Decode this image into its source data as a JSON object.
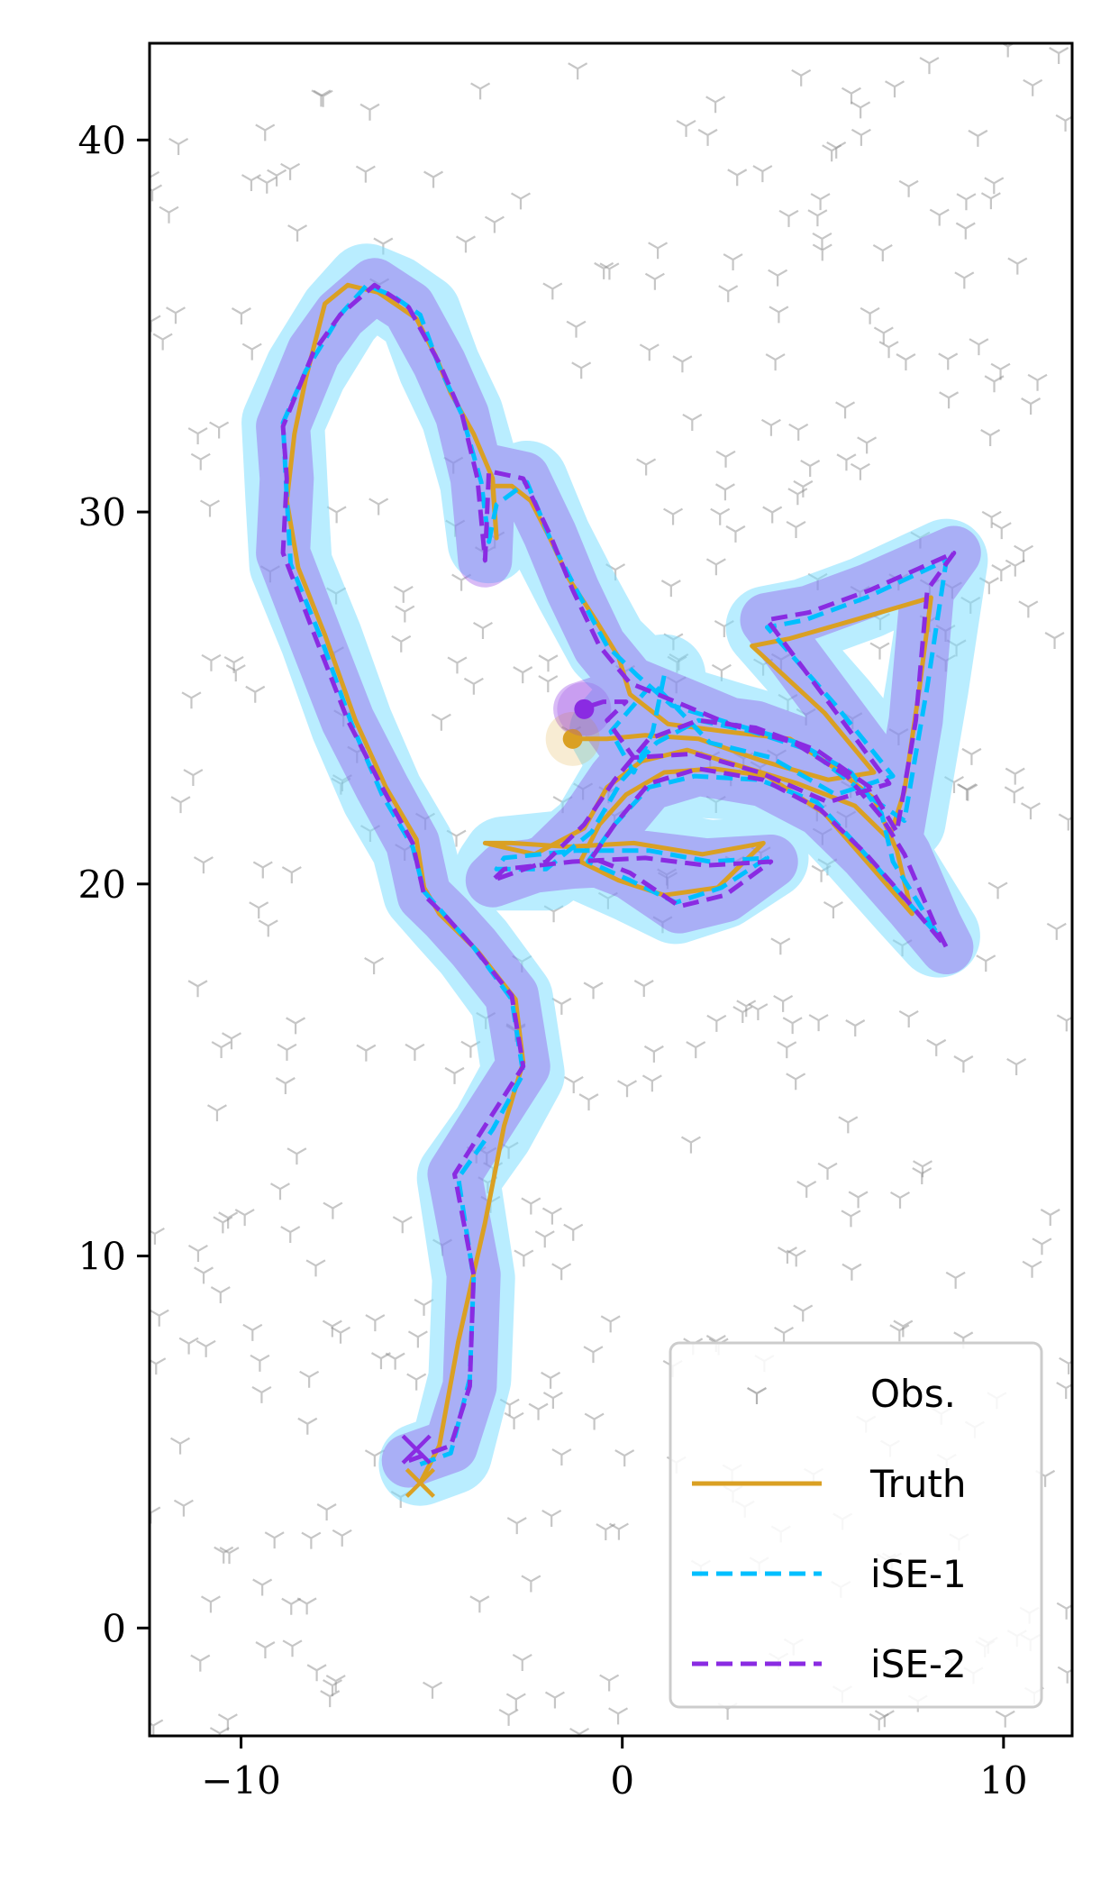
{
  "chart_data": {
    "type": "line",
    "xlim": [
      -12.4,
      11.8
    ],
    "ylim": [
      -2.9,
      42.6
    ],
    "xticks": [
      {
        "value": -10,
        "label": "−10"
      },
      {
        "value": 0,
        "label": "0"
      },
      {
        "value": 10,
        "label": "10"
      }
    ],
    "yticks": [
      {
        "value": 0,
        "label": "0"
      },
      {
        "value": 10,
        "label": "10"
      },
      {
        "value": 20,
        "label": "20"
      },
      {
        "value": 30,
        "label": "30"
      },
      {
        "value": 40,
        "label": "40"
      }
    ],
    "grid": false,
    "legend": {
      "position": "lower-right",
      "entries": [
        {
          "label": "Obs.",
          "kind": "marker",
          "color": "#808080"
        },
        {
          "label": "Truth",
          "kind": "solid",
          "color": "#DAA023"
        },
        {
          "label": "iSE-1",
          "kind": "dashed",
          "color": "#00BFFF"
        },
        {
          "label": "iSE-2",
          "kind": "dashed",
          "color": "#8A2BE2"
        }
      ]
    },
    "series": [
      {
        "name": "Truth",
        "color": "#DAA023",
        "style": "solid",
        "points": [
          [
            -5.3,
            3.9
          ],
          [
            -4.8,
            4.9
          ],
          [
            -4.3,
            7.7
          ],
          [
            -3.6,
            10.9
          ],
          [
            -3.1,
            13.5
          ],
          [
            -2.6,
            15.2
          ],
          [
            -2.8,
            16.9
          ],
          [
            -3.8,
            18.2
          ],
          [
            -4.8,
            19.2
          ],
          [
            -5.2,
            19.9
          ],
          [
            -5.4,
            21.2
          ],
          [
            -6.2,
            22.6
          ],
          [
            -7.0,
            24.4
          ],
          [
            -7.8,
            26.7
          ],
          [
            -8.5,
            28.5
          ],
          [
            -8.8,
            30.3
          ],
          [
            -8.6,
            32.1
          ],
          [
            -8.3,
            33.6
          ],
          [
            -7.8,
            35.6
          ],
          [
            -7.2,
            36.1
          ],
          [
            -6.4,
            35.9
          ],
          [
            -5.4,
            35.2
          ],
          [
            -4.9,
            34.2
          ],
          [
            -4.5,
            33.2
          ],
          [
            -3.9,
            32.1
          ],
          [
            -3.4,
            30.9
          ],
          [
            -3.3,
            29.3
          ],
          [
            -3.4,
            30.7
          ],
          [
            -2.9,
            30.7
          ],
          [
            -2.4,
            30.3
          ],
          [
            -1.9,
            29.3
          ],
          [
            -1.4,
            28.2
          ],
          [
            -0.7,
            27.1
          ],
          [
            -0.1,
            26.1
          ],
          [
            0.2,
            25.1
          ],
          [
            1.2,
            24.3
          ],
          [
            2.7,
            24.1
          ],
          [
            4.4,
            23.9
          ],
          [
            5.6,
            23.1
          ],
          [
            6.6,
            22.3
          ],
          [
            7.2,
            20.9
          ],
          [
            7.6,
            19.2
          ],
          [
            6.5,
            20.5
          ],
          [
            5.3,
            21.9
          ],
          [
            3.8,
            22.9
          ],
          [
            2.4,
            23.1
          ],
          [
            1.1,
            23.0
          ],
          [
            0.1,
            22.4
          ],
          [
            -0.6,
            21.6
          ],
          [
            -1.1,
            20.6
          ],
          [
            -0.1,
            20.1
          ],
          [
            1.1,
            19.7
          ],
          [
            2.5,
            19.9
          ],
          [
            3.7,
            21.1
          ],
          [
            2.1,
            20.8
          ],
          [
            0.3,
            21.1
          ],
          [
            -1.4,
            21.0
          ],
          [
            -2.9,
            21.1
          ],
          [
            -3.6,
            21.1
          ],
          [
            -2.3,
            20.8
          ],
          [
            -1.0,
            21.5
          ],
          [
            -0.4,
            22.6
          ],
          [
            0.5,
            23.3
          ],
          [
            1.7,
            23.6
          ],
          [
            3.0,
            23.2
          ],
          [
            4.6,
            22.7
          ],
          [
            6.1,
            22.1
          ],
          [
            7.0,
            21.2
          ],
          [
            7.4,
            22.5
          ],
          [
            7.8,
            25.3
          ],
          [
            8.1,
            27.7
          ],
          [
            6.1,
            27.1
          ],
          [
            4.4,
            26.6
          ],
          [
            3.4,
            26.4
          ],
          [
            5.3,
            24.6
          ],
          [
            6.6,
            23.0
          ],
          [
            5.4,
            22.8
          ],
          [
            3.7,
            23.3
          ],
          [
            2.0,
            23.9
          ],
          [
            0.6,
            24.0
          ],
          [
            -0.4,
            23.9
          ],
          [
            -1.2,
            23.9
          ]
        ]
      },
      {
        "name": "iSE-1",
        "color": "#00BFFF",
        "style": "dashed",
        "points": [
          [
            -5.3,
            4.4
          ],
          [
            -4.5,
            4.7
          ],
          [
            -4.0,
            6.7
          ],
          [
            -3.9,
            9.4
          ],
          [
            -4.3,
            12.1
          ],
          [
            -3.4,
            13.4
          ],
          [
            -2.6,
            14.9
          ],
          [
            -2.9,
            16.9
          ],
          [
            -3.9,
            18.3
          ],
          [
            -4.6,
            19.1
          ],
          [
            -5.2,
            19.8
          ],
          [
            -5.5,
            21.0
          ],
          [
            -6.3,
            22.4
          ],
          [
            -7.1,
            24.3
          ],
          [
            -7.9,
            26.6
          ],
          [
            -8.7,
            28.6
          ],
          [
            -8.8,
            30.4
          ],
          [
            -8.9,
            32.4
          ],
          [
            -8.3,
            33.8
          ],
          [
            -7.4,
            35.3
          ],
          [
            -6.7,
            36.1
          ],
          [
            -6.0,
            35.8
          ],
          [
            -5.3,
            35.3
          ],
          [
            -4.8,
            33.9
          ],
          [
            -4.2,
            32.6
          ],
          [
            -3.7,
            30.8
          ],
          [
            -3.5,
            29.2
          ],
          [
            -3.3,
            30.2
          ],
          [
            -2.5,
            30.8
          ],
          [
            -1.9,
            29.3
          ],
          [
            -1.2,
            27.9
          ],
          [
            -0.4,
            26.4
          ],
          [
            0.4,
            25.6
          ],
          [
            1.3,
            24.8
          ],
          [
            2.9,
            24.3
          ],
          [
            4.6,
            23.8
          ],
          [
            6.0,
            23.0
          ],
          [
            6.8,
            21.9
          ],
          [
            7.1,
            20.6
          ],
          [
            8.3,
            18.6
          ],
          [
            7.5,
            19.5
          ],
          [
            6.2,
            21.0
          ],
          [
            5.1,
            22.2
          ],
          [
            3.6,
            22.8
          ],
          [
            1.9,
            22.9
          ],
          [
            0.7,
            22.6
          ],
          [
            -0.2,
            21.6
          ],
          [
            -0.9,
            20.6
          ],
          [
            0.2,
            20.1
          ],
          [
            1.4,
            19.5
          ],
          [
            2.6,
            19.9
          ],
          [
            3.8,
            20.7
          ],
          [
            2.3,
            20.6
          ],
          [
            0.7,
            20.9
          ],
          [
            -1.2,
            20.9
          ],
          [
            -3.1,
            20.7
          ],
          [
            -3.3,
            20.4
          ],
          [
            -2.0,
            20.4
          ],
          [
            -0.8,
            21.4
          ],
          [
            0.0,
            22.8
          ],
          [
            0.9,
            23.8
          ],
          [
            2.0,
            24.4
          ],
          [
            3.4,
            24.1
          ],
          [
            4.9,
            23.6
          ],
          [
            6.4,
            22.4
          ],
          [
            7.4,
            21.7
          ],
          [
            8.0,
            25.3
          ],
          [
            8.5,
            28.7
          ],
          [
            6.4,
            27.7
          ],
          [
            4.8,
            27.1
          ],
          [
            3.8,
            26.9
          ],
          [
            5.6,
            24.8
          ],
          [
            7.1,
            22.9
          ],
          [
            5.6,
            22.4
          ],
          [
            3.9,
            23.4
          ],
          [
            2.3,
            23.8
          ],
          [
            0.8,
            25.4
          ],
          [
            -0.3,
            24.1
          ],
          [
            0.3,
            23.0
          ],
          [
            0.8,
            24.1
          ],
          [
            1.1,
            25.6
          ]
        ]
      },
      {
        "name": "iSE-2",
        "color": "#8A2BE2",
        "style": "dashed",
        "points": [
          [
            -5.6,
            4.5
          ],
          [
            -4.5,
            4.9
          ],
          [
            -4.0,
            6.5
          ],
          [
            -3.9,
            9.5
          ],
          [
            -4.4,
            12.2
          ],
          [
            -3.6,
            13.5
          ],
          [
            -2.6,
            15.1
          ],
          [
            -2.9,
            17.0
          ],
          [
            -3.9,
            18.3
          ],
          [
            -4.6,
            19.1
          ],
          [
            -5.2,
            19.7
          ],
          [
            -5.5,
            21.1
          ],
          [
            -6.3,
            22.6
          ],
          [
            -7.2,
            24.4
          ],
          [
            -8.0,
            26.5
          ],
          [
            -8.9,
            28.9
          ],
          [
            -8.8,
            30.9
          ],
          [
            -8.9,
            32.3
          ],
          [
            -8.1,
            34.3
          ],
          [
            -7.4,
            35.3
          ],
          [
            -6.5,
            36.1
          ],
          [
            -5.6,
            35.5
          ],
          [
            -4.8,
            34.0
          ],
          [
            -4.2,
            32.6
          ],
          [
            -3.8,
            30.9
          ],
          [
            -3.6,
            28.7
          ],
          [
            -3.5,
            31.1
          ],
          [
            -2.6,
            30.9
          ],
          [
            -1.9,
            29.4
          ],
          [
            -1.3,
            27.9
          ],
          [
            -0.6,
            26.4
          ],
          [
            0.2,
            25.4
          ],
          [
            1.4,
            24.9
          ],
          [
            2.8,
            24.3
          ],
          [
            4.5,
            23.8
          ],
          [
            5.9,
            22.9
          ],
          [
            6.8,
            21.8
          ],
          [
            7.4,
            20.8
          ],
          [
            8.2,
            18.9
          ],
          [
            8.5,
            18.3
          ],
          [
            7.6,
            19.4
          ],
          [
            6.4,
            20.8
          ],
          [
            5.2,
            22.0
          ],
          [
            3.7,
            22.8
          ],
          [
            2.0,
            23.1
          ],
          [
            0.7,
            22.7
          ],
          [
            -0.2,
            21.6
          ],
          [
            -0.8,
            20.7
          ],
          [
            0.2,
            20.3
          ],
          [
            1.5,
            19.4
          ],
          [
            2.7,
            19.7
          ],
          [
            3.9,
            20.6
          ],
          [
            2.2,
            20.5
          ],
          [
            0.6,
            20.7
          ],
          [
            -1.3,
            20.6
          ],
          [
            -3.1,
            20.4
          ],
          [
            -3.4,
            20.1
          ],
          [
            -2.0,
            20.6
          ],
          [
            -1.0,
            21.6
          ],
          [
            -0.2,
            22.8
          ],
          [
            0.7,
            23.9
          ],
          [
            2.0,
            24.4
          ],
          [
            3.5,
            24.2
          ],
          [
            5.1,
            23.6
          ],
          [
            6.5,
            22.6
          ],
          [
            7.2,
            21.4
          ],
          [
            7.7,
            24.4
          ],
          [
            8.0,
            27.9
          ],
          [
            8.7,
            28.9
          ],
          [
            6.5,
            27.9
          ],
          [
            4.9,
            27.3
          ],
          [
            3.8,
            27.1
          ],
          [
            5.4,
            24.9
          ],
          [
            7.0,
            22.7
          ],
          [
            5.4,
            22.2
          ],
          [
            3.6,
            23.0
          ],
          [
            1.9,
            23.5
          ],
          [
            0.3,
            23.4
          ],
          [
            -0.4,
            24.4
          ],
          [
            0.1,
            24.9
          ],
          [
            -0.5,
            24.9
          ],
          [
            -1.1,
            24.7
          ]
        ]
      }
    ],
    "uncertainty_bands": [
      {
        "series": "iSE-1",
        "color": "#7FDFFF"
      },
      {
        "series": "iSE-2",
        "color": "#8A2BE2"
      }
    ],
    "markers": [
      {
        "series": "Truth",
        "kind": "start-x",
        "x": -5.3,
        "y": 3.9,
        "color": "#DAA023"
      },
      {
        "series": "iSE-2",
        "kind": "start-x",
        "x": -5.4,
        "y": 4.8,
        "color": "#8A2BE2"
      },
      {
        "series": "Truth",
        "kind": "end-dot",
        "x": -1.3,
        "y": 23.9,
        "color": "#DAA023"
      },
      {
        "series": "iSE-2",
        "kind": "end-dot",
        "x": -1.0,
        "y": 24.7,
        "color": "#8A2BE2"
      }
    ],
    "observations": {
      "label": "Obs.",
      "marker": "tri_down",
      "color": "#808080",
      "count": 420,
      "x_range": [
        -12.4,
        11.8
      ],
      "y_range": [
        -2.9,
        42.6
      ]
    }
  }
}
